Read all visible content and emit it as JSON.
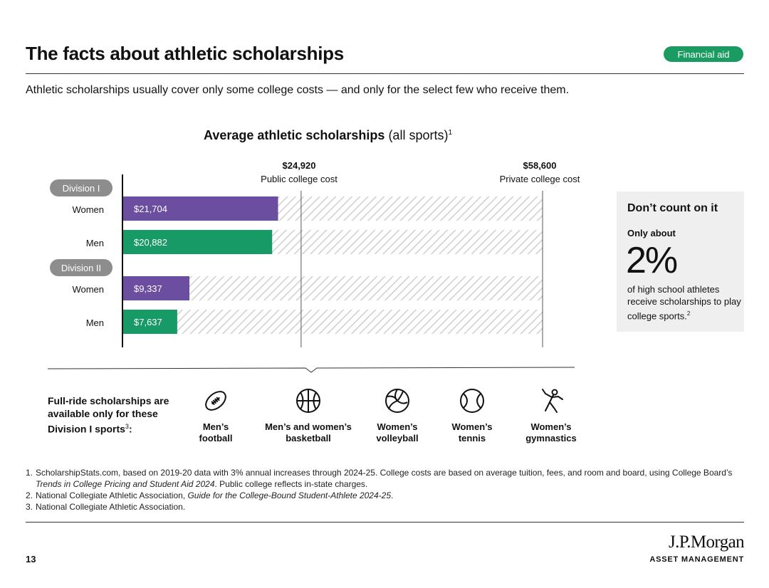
{
  "header": {
    "title": "The facts about athletic scholarships",
    "tag": "Financial aid",
    "tag_color": "#1a9b62",
    "subtitle": "Athletic scholarships usually cover only some college costs — and only for the select few who receive them."
  },
  "chart_data": {
    "type": "bar",
    "orientation": "horizontal",
    "title_bold": "Average athletic scholarships",
    "title_rest": " (all sports)",
    "title_footnote": "1",
    "groups": [
      {
        "label": "Division I",
        "bars": [
          {
            "label": "Women",
            "value": 21704,
            "value_label": "$21,704",
            "color": "#6c4ea0"
          },
          {
            "label": "Men",
            "value": 20882,
            "value_label": "$20,882",
            "color": "#179a65"
          }
        ]
      },
      {
        "label": "Division II",
        "bars": [
          {
            "label": "Women",
            "value": 9337,
            "value_label": "$9,337",
            "color": "#6c4ea0"
          },
          {
            "label": "Men",
            "value": 7637,
            "value_label": "$7,637",
            "color": "#179a65"
          }
        ]
      }
    ],
    "reference_lines": [
      {
        "value": 24920,
        "value_label": "$24,920",
        "label": "Public college cost"
      },
      {
        "value": 58600,
        "value_label": "$58,600",
        "label": "Private college cost"
      }
    ],
    "xlim": [
      0,
      58600
    ],
    "background_fill": "hatched",
    "grid": false
  },
  "callout": {
    "title": "Don’t count on it",
    "lead": "Only about",
    "stat": "2%",
    "text": "of high school athletes receive scholarships to play college sports.",
    "footnote": "2",
    "background": "#efefef"
  },
  "full_ride": {
    "text": "Full-ride scholarships are available only for these Division I sports",
    "footnote": "3",
    "suffix": ":",
    "sports": [
      {
        "icon": "football-icon",
        "line1": "Men’s",
        "line2": "football"
      },
      {
        "icon": "basketball-icon",
        "line1": "Men’s and women’s",
        "line2": "basketball"
      },
      {
        "icon": "volleyball-icon",
        "line1": "Women’s",
        "line2": "volleyball"
      },
      {
        "icon": "tennis-ball-icon",
        "line1": "Women’s",
        "line2": "tennis"
      },
      {
        "icon": "gymnast-icon",
        "line1": "Women’s",
        "line2": "gymnastics"
      }
    ]
  },
  "footnotes": [
    {
      "num": "1.",
      "before": "ScholarshipStats.com, based on 2019-20 data with 3% annual increases through 2024-25. College costs are based on average tuition, fees, and room and board, using College Board’s ",
      "italic": "Trends in College Pricing and Student Aid 2024",
      "after": ". Public college reflects in-state charges."
    },
    {
      "num": "2.",
      "before": "National Collegiate Athletic Association, ",
      "italic": "Guide for the College-Bound Student-Athlete 2024-25",
      "after": "."
    },
    {
      "num": "3.",
      "before": "National Collegiate Athletic Association.",
      "italic": "",
      "after": ""
    }
  ],
  "footer": {
    "page_number": "13",
    "brand_name": "J.P.Morgan",
    "brand_sub": "ASSET MANAGEMENT"
  }
}
